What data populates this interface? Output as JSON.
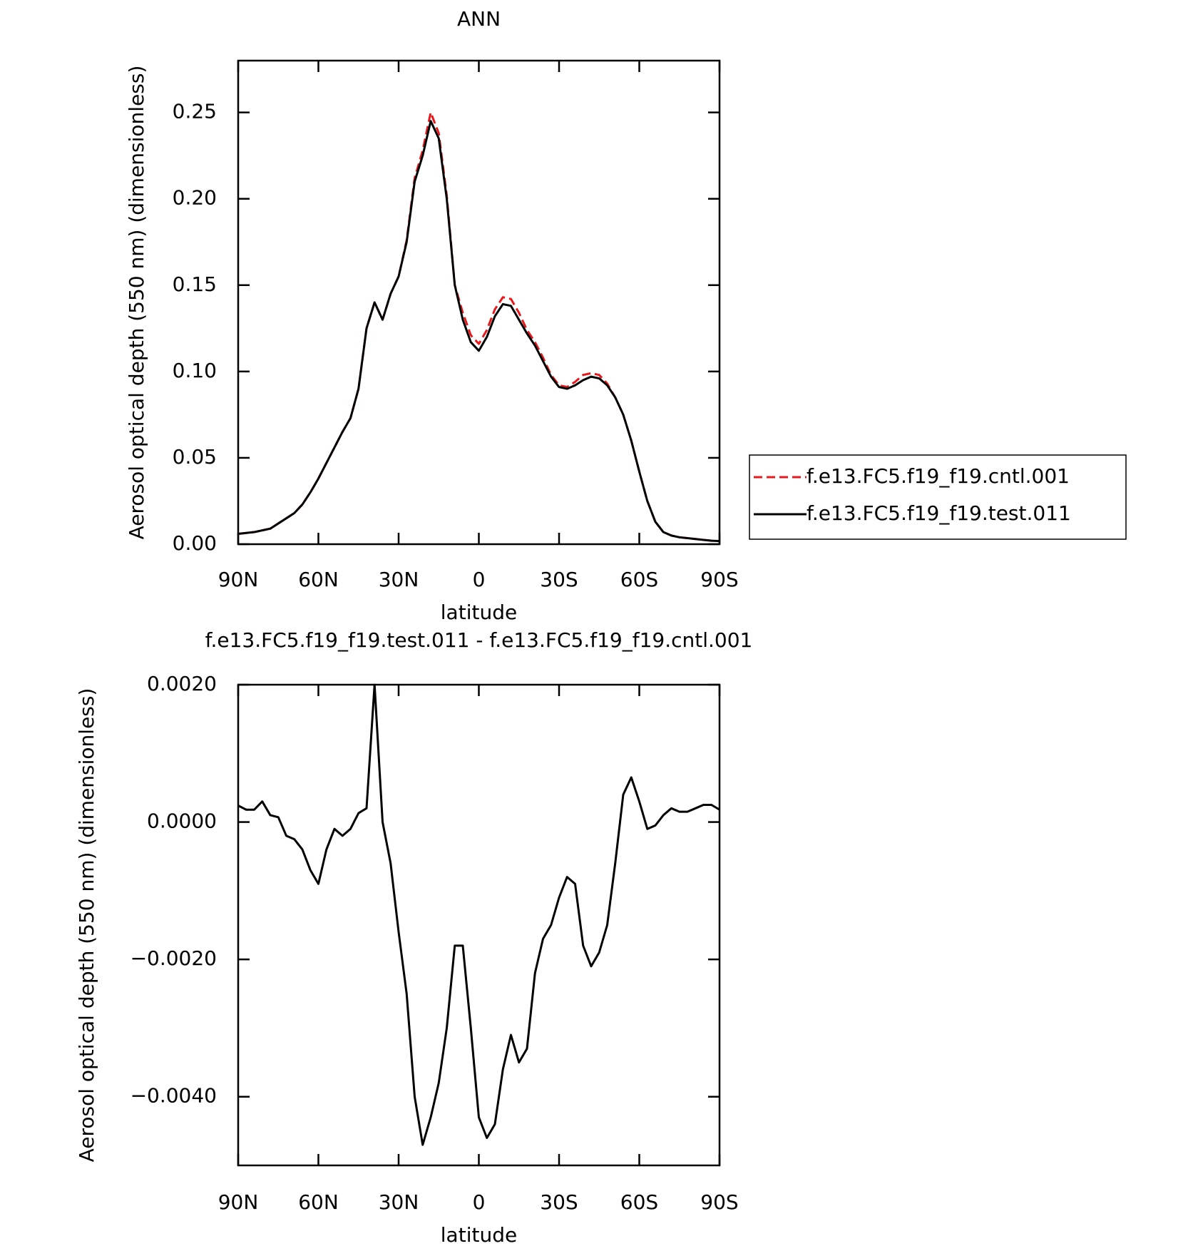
{
  "chart_data": [
    {
      "type": "line",
      "title": "ANN",
      "x_label": "latitude",
      "y_label": "Aerosol optical depth (550 nm) (dimensionless)",
      "x": [
        90,
        87,
        84,
        81,
        78,
        75,
        72,
        69,
        66,
        63,
        60,
        57,
        54,
        51,
        48,
        45,
        42,
        39,
        36,
        33,
        30,
        27,
        24,
        21,
        18,
        15,
        12,
        9,
        6,
        3,
        0,
        -3,
        -6,
        -9,
        -12,
        -15,
        -18,
        -21,
        -24,
        -27,
        -30,
        -33,
        -36,
        -39,
        -42,
        -45,
        -48,
        -51,
        -54,
        -57,
        -60,
        -63,
        -66,
        -69,
        -72,
        -75,
        -78,
        -81,
        -84,
        -87,
        -90
      ],
      "xlim": [
        90,
        -90
      ],
      "xticks": [
        {
          "value": 90,
          "label": "90N"
        },
        {
          "value": 60,
          "label": "60N"
        },
        {
          "value": 30,
          "label": "30N"
        },
        0,
        {
          "value": -30,
          "label": "30S"
        },
        {
          "value": -60,
          "label": "60S"
        },
        {
          "value": -90,
          "label": "90S"
        }
      ],
      "ylim": [
        0,
        0.28
      ],
      "yticks": [
        {
          "value": 0,
          "label": "0.00"
        },
        0.05,
        {
          "value": 0.1,
          "label": "0.10"
        },
        0.15,
        {
          "value": 0.2,
          "label": "0.20"
        },
        0.25
      ],
      "legend": "right",
      "series": [
        {
          "name": "f.e13.FC5.f19_f19.cntl.001",
          "color": "#e8191c",
          "line_style": "dashed",
          "values": [
            0.006,
            0.0065,
            0.007,
            0.008,
            0.009,
            0.012,
            0.015,
            0.018,
            0.023,
            0.03,
            0.038,
            0.047,
            0.056,
            0.065,
            0.073,
            0.09,
            0.125,
            0.14,
            0.13,
            0.145,
            0.155,
            0.176,
            0.212,
            0.228,
            0.25,
            0.238,
            0.202,
            0.15,
            0.134,
            0.121,
            0.116,
            0.124,
            0.136,
            0.143,
            0.142,
            0.134,
            0.124,
            0.117,
            0.108,
            0.098,
            0.092,
            0.091,
            0.094,
            0.098,
            0.099,
            0.098,
            0.093,
            0.085,
            0.075,
            0.06,
            0.042,
            0.025,
            0.013,
            0.007,
            0.005,
            0.004,
            0.0035,
            0.003,
            0.0025,
            0.002,
            0.0018
          ]
        },
        {
          "name": "f.e13.FC5.f19_f19.test.011",
          "color": "#000000",
          "line_style": "solid",
          "values": [
            0.006,
            0.0065,
            0.007,
            0.008,
            0.009,
            0.012,
            0.015,
            0.018,
            0.023,
            0.03,
            0.038,
            0.047,
            0.056,
            0.065,
            0.073,
            0.09,
            0.125,
            0.14,
            0.13,
            0.145,
            0.155,
            0.175,
            0.21,
            0.225,
            0.245,
            0.235,
            0.2,
            0.15,
            0.13,
            0.117,
            0.112,
            0.12,
            0.132,
            0.139,
            0.138,
            0.13,
            0.122,
            0.115,
            0.106,
            0.097,
            0.091,
            0.09,
            0.092,
            0.095,
            0.097,
            0.096,
            0.092,
            0.085,
            0.075,
            0.06,
            0.042,
            0.025,
            0.013,
            0.007,
            0.005,
            0.004,
            0.0035,
            0.003,
            0.0025,
            0.002,
            0.0018
          ]
        }
      ]
    },
    {
      "type": "line",
      "title": "f.e13.FC5.f19_f19.test.011 - f.e13.FC5.f19_f19.cntl.001",
      "x_label": "latitude",
      "y_label": "Aerosol optical depth (550 nm) (dimensionless)",
      "x": [
        90,
        87,
        84,
        81,
        78,
        75,
        72,
        69,
        66,
        63,
        60,
        57,
        54,
        51,
        48,
        45,
        42,
        39,
        36,
        33,
        30,
        27,
        24,
        21,
        18,
        15,
        12,
        9,
        6,
        3,
        0,
        -3,
        -6,
        -9,
        -12,
        -15,
        -18,
        -21,
        -24,
        -27,
        -30,
        -33,
        -36,
        -39,
        -42,
        -45,
        -48,
        -51,
        -54,
        -57,
        -60,
        -63,
        -66,
        -69,
        -72,
        -75,
        -78,
        -81,
        -84,
        -87,
        -90
      ],
      "xlim": [
        90,
        -90
      ],
      "xticks": [
        {
          "value": 90,
          "label": "90N"
        },
        {
          "value": 60,
          "label": "60N"
        },
        {
          "value": 30,
          "label": "30N"
        },
        0,
        {
          "value": -30,
          "label": "30S"
        },
        {
          "value": -60,
          "label": "60S"
        },
        {
          "value": -90,
          "label": "90S"
        }
      ],
      "ylim": [
        -0.005,
        0.002
      ],
      "yticks": [
        {
          "value": -0.004,
          "label": "−0.0040"
        },
        {
          "value": -0.002,
          "label": "−0.0020"
        },
        {
          "value": 0,
          "label": "0.0000"
        },
        {
          "value": 0.002,
          "label": "0.0020"
        }
      ],
      "series": [
        {
          "color": "#000000",
          "line_style": "solid",
          "values": [
            0.00024,
            0.00018,
            0.00018,
            0.0003,
            0.0001,
            7e-05,
            -0.0002,
            -0.00025,
            -0.0004,
            -0.0007,
            -0.0009,
            -0.0004,
            -0.0001,
            -0.0002,
            -0.0001,
            0.00013,
            0.0002,
            0.002,
            0,
            -0.0006,
            -0.0016,
            -0.0025,
            -0.004,
            -0.0047,
            -0.0043,
            -0.0038,
            -0.003,
            -0.0018,
            -0.0018,
            -0.003,
            -0.0043,
            -0.0046,
            -0.0044,
            -0.0036,
            -0.0031,
            -0.0035,
            -0.0033,
            -0.0022,
            -0.0017,
            -0.0015,
            -0.0011,
            -0.0008,
            -0.0009,
            -0.0018,
            -0.0021,
            -0.0019,
            -0.0015,
            -0.0006,
            0.0004,
            0.00065,
            0.0003,
            -0.0001,
            -5e-05,
            0.0001,
            0.0002,
            0.00015,
            0.00015,
            0.0002,
            0.00025,
            0.00025,
            0.00018
          ]
        }
      ]
    }
  ]
}
